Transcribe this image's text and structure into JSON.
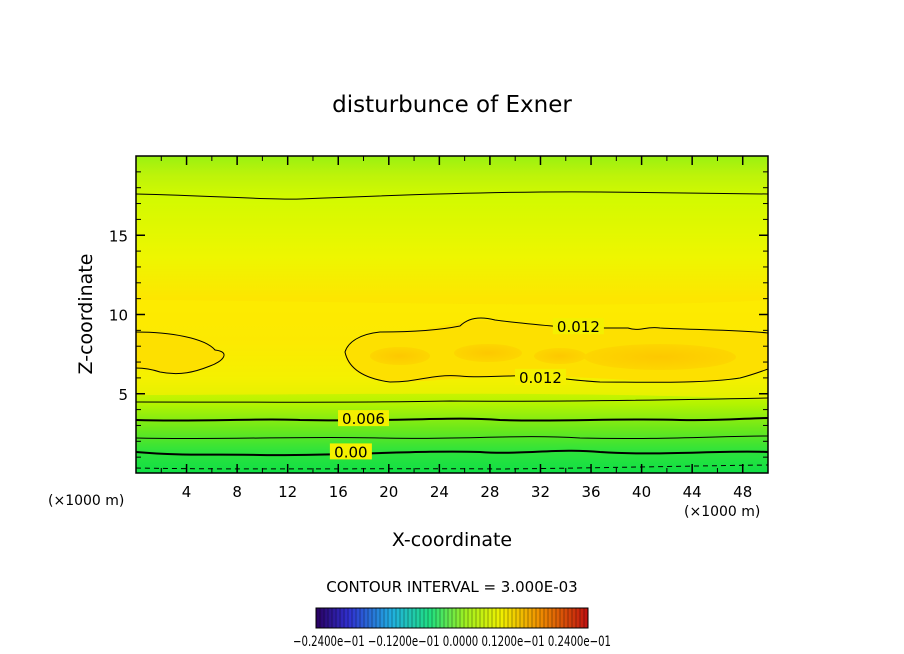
{
  "chart_data": {
    "type": "heatmap",
    "title": "disturbunce of Exner",
    "xlabel": "X-coordinate",
    "ylabel": "Z-coordinate",
    "x_unit_left": "(×1000 m)",
    "x_unit_right": "(×1000 m)",
    "xlim": [
      0,
      50
    ],
    "ylim": [
      0,
      20
    ],
    "x_ticks": [
      4,
      8,
      12,
      16,
      20,
      24,
      28,
      32,
      36,
      40,
      44,
      48
    ],
    "y_ticks": [
      5,
      10,
      15
    ],
    "contour_interval_text": "CONTOUR INTERVAL = 3.000E-03",
    "contour_labels": [
      {
        "text": "0.012",
        "x": 35,
        "y": 9.2
      },
      {
        "text": "0.012",
        "x": 32,
        "y": 6.0
      },
      {
        "text": "0.006",
        "x": 18,
        "y": 3.4
      },
      {
        "text": "0.00",
        "x": 17,
        "y": 1.3
      }
    ],
    "colorbar": {
      "min": -0.024,
      "max": 0.024,
      "labels_text": "−0.2400e−01  −0.1200e−01  0.0000  0.1200e−01  0.2400e−01"
    }
  }
}
